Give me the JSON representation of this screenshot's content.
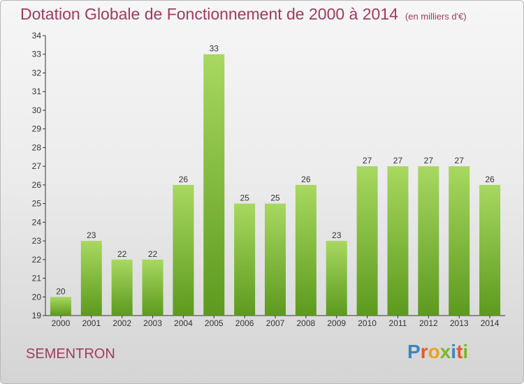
{
  "header": {
    "title": "Dotation Globale de Fonctionnement de 2000 à 2014",
    "subtitle": "(en milliers d'€)"
  },
  "footer": {
    "commune": "SEMENTRON",
    "logo": "Proxiti"
  },
  "colors": {
    "title": "#a23b5a",
    "bar_top": "#a8d860",
    "bar_bottom": "#5c9a1e"
  },
  "chart_data": {
    "type": "bar",
    "title": "Dotation Globale de Fonctionnement de 2000 à 2014",
    "subtitle": "(en milliers d'€)",
    "categories": [
      "2000",
      "2001",
      "2002",
      "2003",
      "2004",
      "2005",
      "2006",
      "2007",
      "2008",
      "2009",
      "2010",
      "2011",
      "2012",
      "2013",
      "2014"
    ],
    "values": [
      20,
      23,
      22,
      22,
      26,
      33,
      25,
      25,
      26,
      23,
      27,
      27,
      27,
      27,
      26
    ],
    "ylim": [
      19,
      34
    ],
    "yticks": [
      19,
      20,
      21,
      22,
      23,
      24,
      25,
      26,
      27,
      28,
      29,
      30,
      31,
      32,
      33,
      34
    ],
    "grid": false,
    "data_labels": true
  }
}
